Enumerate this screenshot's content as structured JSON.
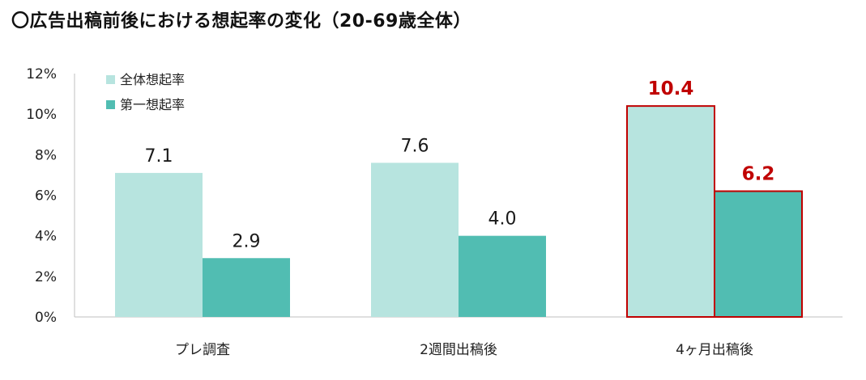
{
  "title": "〇広告出稿前後における想起率の変化（20-69歳全体）",
  "chart_data": {
    "type": "bar",
    "categories": [
      "プレ調査",
      "2週間出稿後",
      "4ヶ月出稿後"
    ],
    "series": [
      {
        "name": "全体想起率",
        "values": [
          7.1,
          7.6,
          10.4
        ],
        "color": "#b7e4df"
      },
      {
        "name": "第一想起率",
        "values": [
          2.9,
          4.0,
          6.2
        ],
        "color": "#51bdb2"
      }
    ],
    "data_labels": [
      [
        "7.1",
        "7.6",
        "10.4"
      ],
      [
        "2.9",
        "4.0",
        "6.2"
      ]
    ],
    "highlight_category_index": 2,
    "highlight_color": "#c00000",
    "yticks": [
      "0%",
      "2%",
      "4%",
      "6%",
      "8%",
      "10%",
      "12%"
    ],
    "ylim": [
      0,
      12
    ],
    "grid": false,
    "legend_position": "top-left"
  }
}
